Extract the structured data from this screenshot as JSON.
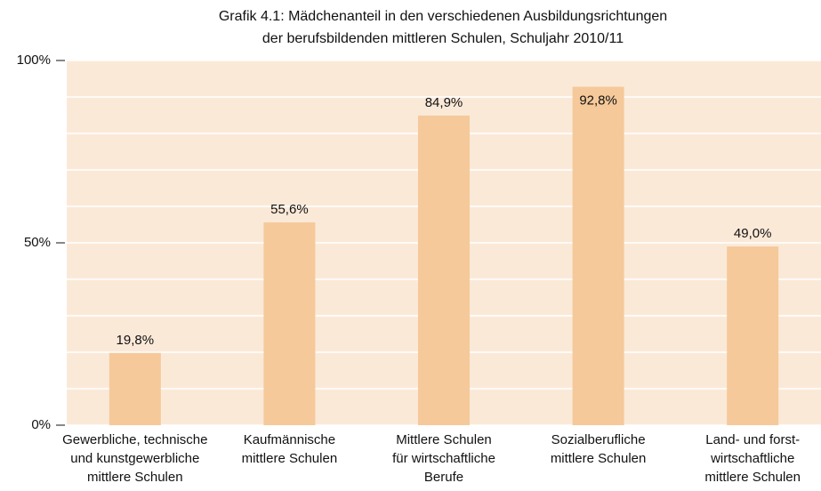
{
  "chart_data": {
    "type": "bar",
    "title": [
      "Grafik 4.1: Mädchenanteil in den verschiedenen Ausbildungsrichtungen",
      "der berufsbildenden mittleren Schulen, Schuljahr 2010/11"
    ],
    "categories": [
      [
        "Gewerbliche, technische",
        "und kunstgewerbliche",
        "mittlere Schulen"
      ],
      [
        "Kaufmännische",
        "mittlere Schulen"
      ],
      [
        "Mittlere Schulen",
        "für wirtschaftliche",
        "Berufe"
      ],
      [
        "Sozialberufliche",
        "mittlere Schulen"
      ],
      [
        "Land- und forst-",
        "wirtschaftliche",
        "mittlere Schulen"
      ]
    ],
    "values": [
      19.8,
      55.6,
      84.9,
      92.8,
      49.0
    ],
    "value_labels": [
      "19,8%",
      "55,6%",
      "84,9%",
      "92,8%",
      "49,0%"
    ],
    "color": "#f5c99a",
    "plot_background": "#fbe9d8",
    "ylim": [
      0,
      100
    ],
    "yticks": [
      {
        "value": 0,
        "label": "0%"
      },
      {
        "value": 50,
        "label": "50%"
      },
      {
        "value": 100,
        "label": "100%"
      }
    ],
    "grid": true,
    "minor_gridlines": [
      10,
      20,
      30,
      40,
      60,
      70,
      80,
      90
    ]
  }
}
